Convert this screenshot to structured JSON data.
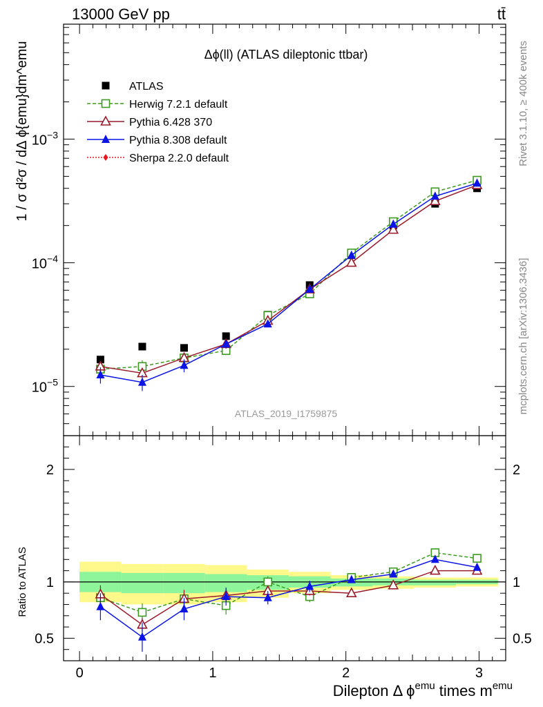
{
  "header": {
    "left": "13000 GeV pp",
    "right": "tt̄"
  },
  "side_text": {
    "top": "Rivet 3.1.10, ≥ 400k events",
    "bottom": "mcplots.cern.ch [arXiv:1306.3436]"
  },
  "chart_data": [
    {
      "type": "scatter",
      "panel": "main",
      "title": "Δϕ(ll) (ATLAS dileptonic ttbar)",
      "watermark": "ATLAS_2019_I1759875",
      "ylabel": "1 / σ d²σ / dΔ ϕ{emu}dm^emu",
      "yscale": "log",
      "ylim": [
        4e-06,
        0.0085
      ],
      "xlim": [
        -0.12,
        3.2
      ],
      "y_ticks": [
        {
          "v": 1e-05,
          "base": "10",
          "exp": "−5"
        },
        {
          "v": 0.0001,
          "base": "10",
          "exp": "−4"
        },
        {
          "v": 0.001,
          "base": "10",
          "exp": "−3"
        }
      ],
      "legend_position": "top-left",
      "x": [
        0.157,
        0.471,
        0.785,
        1.1,
        1.414,
        1.728,
        2.042,
        2.356,
        2.67,
        2.985
      ],
      "series": [
        {
          "name": "ATLAS",
          "marker": "square-filled",
          "color": "#000000",
          "values": [
            1.65e-05,
            2.1e-05,
            2.05e-05,
            2.55e-05,
            3.8e-05,
            6.6e-05,
            0.000115,
            0.0002,
            0.0003,
            0.0004
          ]
        },
        {
          "name": "Herwig 7.2.1 default",
          "marker": "square-open",
          "line": "dashed",
          "color": "#3a9a1e",
          "values": [
            1.38e-05,
            1.45e-05,
            1.7e-05,
            1.95e-05,
            3.75e-05,
            5.6e-05,
            0.00012,
            0.000215,
            0.000375,
            0.000465
          ],
          "err": [
            0.1,
            0.12,
            0.08,
            0.08,
            0.06,
            0.05,
            0.04,
            0.03,
            0.02,
            0.02
          ]
        },
        {
          "name": "Pythia 6.428 370",
          "marker": "triangle-open",
          "line": "solid",
          "color": "#9a1a2a",
          "values": [
            1.45e-05,
            1.28e-05,
            1.7e-05,
            2.2e-05,
            3.4e-05,
            6.1e-05,
            0.0001,
            0.000185,
            0.000315,
            0.000425
          ]
        },
        {
          "name": "Pythia 8.308 default",
          "marker": "triangle-filled",
          "line": "solid",
          "color": "#0a14e6",
          "values": [
            1.24e-05,
            1.08e-05,
            1.48e-05,
            2.2e-05,
            3.2e-05,
            6.1e-05,
            0.000115,
            0.000205,
            0.000345,
            0.00044
          ],
          "err": [
            0.15,
            0.15,
            0.12,
            0.08,
            0.06,
            0.05,
            0.04,
            0.03,
            0.02,
            0.02
          ]
        },
        {
          "name": "Sherpa 2.2.0 default",
          "marker": "diamond-filled",
          "line": "dotted",
          "color": "#e8141e",
          "values": []
        }
      ]
    },
    {
      "type": "scatter",
      "panel": "ratio",
      "ylabel": "Ratio to ATLAS",
      "xlabel": "Dilepton Δ ϕ^emu times m^emu",
      "ylim": [
        0.3,
        2.3
      ],
      "xlim": [
        -0.12,
        3.2
      ],
      "y_ticks": [
        0.5,
        1,
        2
      ],
      "x_ticks": [
        0,
        1,
        2,
        3
      ],
      "x": [
        0.157,
        0.471,
        0.785,
        1.1,
        1.414,
        1.728,
        2.042,
        2.356,
        2.67,
        2.985
      ],
      "band_edges": [
        0.0,
        0.314,
        0.628,
        0.942,
        1.257,
        1.571,
        1.885,
        2.199,
        2.513,
        2.827,
        3.142
      ],
      "band_yellow": [
        [
          0.82,
          1.18
        ],
        [
          0.8,
          1.16
        ],
        [
          0.8,
          1.16
        ],
        [
          0.82,
          1.15
        ],
        [
          0.86,
          1.11
        ],
        [
          0.9,
          1.09
        ],
        [
          0.93,
          1.06
        ],
        [
          0.94,
          1.05
        ],
        [
          0.95,
          1.04
        ],
        [
          0.96,
          1.04
        ]
      ],
      "band_green": [
        [
          0.91,
          1.09
        ],
        [
          0.9,
          1.08
        ],
        [
          0.9,
          1.08
        ],
        [
          0.91,
          1.07
        ],
        [
          0.93,
          1.06
        ],
        [
          0.95,
          1.05
        ],
        [
          0.96,
          1.03
        ],
        [
          0.97,
          1.03
        ],
        [
          0.97,
          1.02
        ],
        [
          0.98,
          1.02
        ]
      ],
      "series": [
        {
          "name": "Herwig 7.2.1 default",
          "color": "#3a9a1e",
          "marker": "square-open",
          "line": "dashed",
          "values": [
            0.86,
            0.73,
            0.85,
            0.79,
            1.0,
            0.87,
            1.04,
            1.09,
            1.26,
            1.21
          ],
          "err": [
            0.06,
            0.08,
            0.05,
            0.08,
            0.05,
            0.05,
            0.03,
            0.02,
            0.02,
            0.02
          ]
        },
        {
          "name": "Pythia 6.428 370",
          "color": "#9a1a2a",
          "marker": "triangle-open",
          "line": "solid",
          "values": [
            0.89,
            0.62,
            0.85,
            0.88,
            0.92,
            0.92,
            0.9,
            0.97,
            1.1,
            1.1
          ],
          "err": [
            0.08,
            0.06,
            0.08,
            0.06,
            0.05,
            0.04,
            0.03,
            0.02,
            0.02,
            0.02
          ]
        },
        {
          "name": "Pythia 8.308 default",
          "color": "#0a14e6",
          "marker": "triangle-filled",
          "line": "solid",
          "values": [
            0.78,
            0.51,
            0.76,
            0.87,
            0.86,
            0.96,
            1.02,
            1.07,
            1.2,
            1.13
          ],
          "err": [
            0.12,
            0.13,
            0.1,
            0.08,
            0.06,
            0.05,
            0.03,
            0.02,
            0.02,
            0.02
          ]
        }
      ]
    }
  ]
}
